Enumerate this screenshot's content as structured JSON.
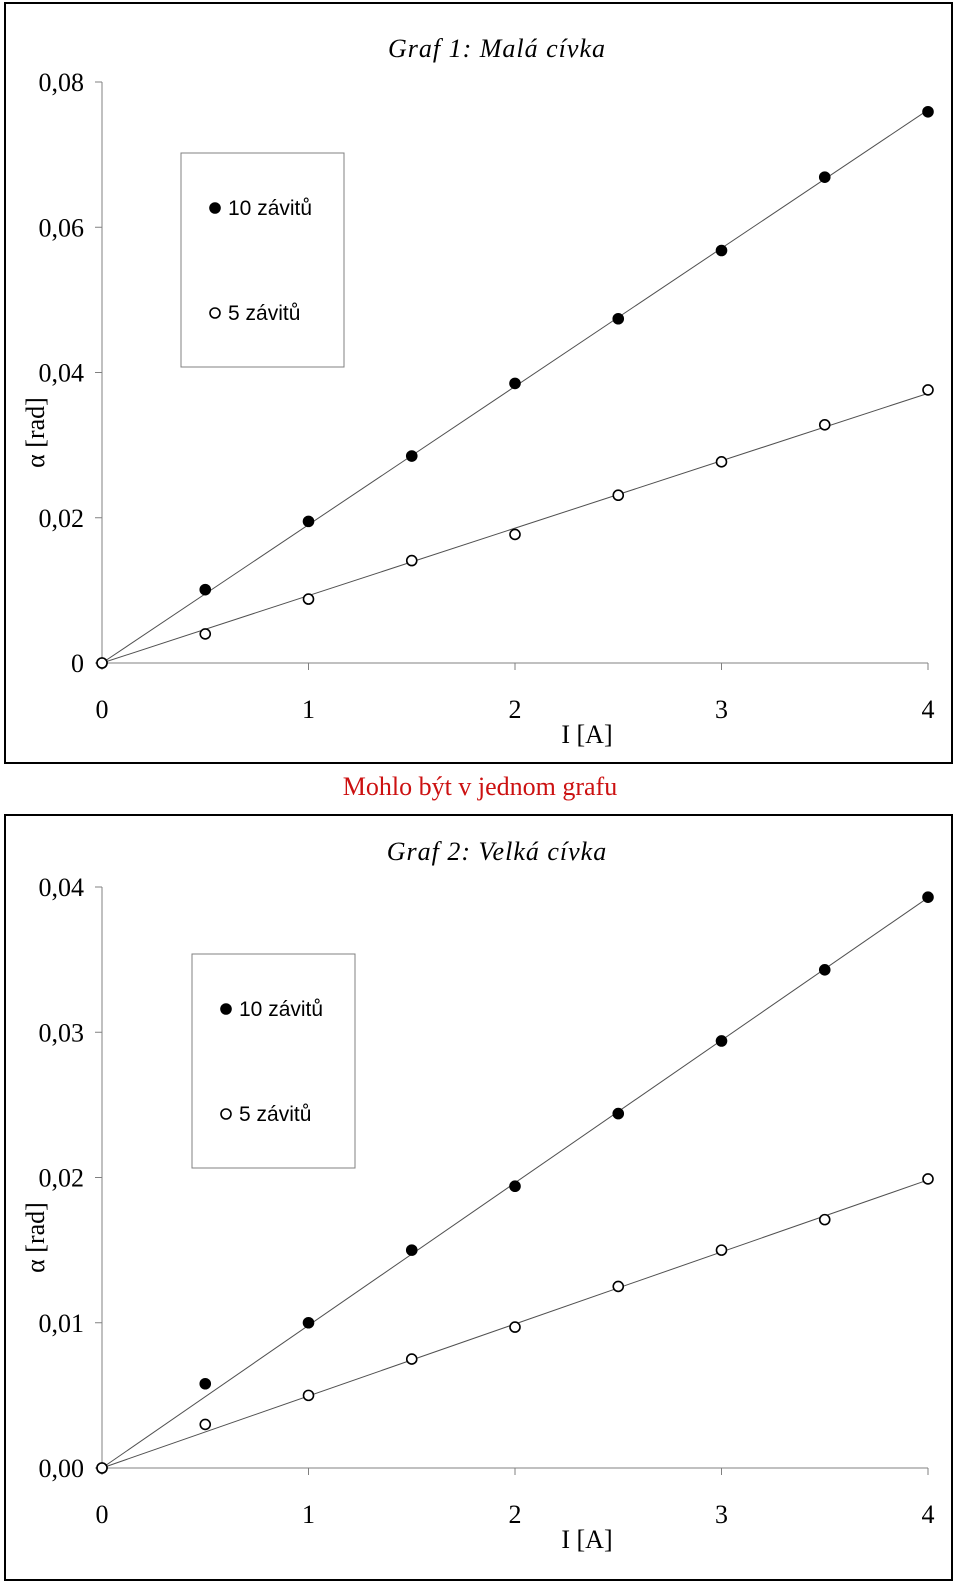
{
  "note": "Mohlo být v jednom grafu",
  "chart_data": [
    {
      "type": "scatter",
      "title": "Graf 1: Malá cívka",
      "xlabel": "I [A]",
      "ylabel": "α [rad]",
      "xlim": [
        0,
        4
      ],
      "ylim": [
        0,
        0.08
      ],
      "xticks": [
        "0",
        "1",
        "2",
        "3",
        "4"
      ],
      "yticks": [
        "0",
        "0,02",
        "0,04",
        "0,06",
        "0,08"
      ],
      "grid": false,
      "legend_position": "top-left",
      "x": [
        0,
        0.5,
        1,
        1.5,
        2,
        2.5,
        3,
        3.5,
        4
      ],
      "series": [
        {
          "name": "10 závitů",
          "marker": "filled-circle",
          "trendline": true,
          "values": [
            0,
            0.0101,
            0.0195,
            0.0285,
            0.0385,
            0.0474,
            0.0568,
            0.0669,
            0.0759
          ]
        },
        {
          "name": "5 závitů",
          "marker": "open-circle",
          "trendline": true,
          "values": [
            0,
            0.004,
            0.0088,
            0.0141,
            0.0177,
            0.0231,
            0.0277,
            0.0328,
            0.0376
          ]
        }
      ]
    },
    {
      "type": "scatter",
      "title": "Graf 2: Velká cívka",
      "xlabel": "I [A]",
      "ylabel": "α [rad]",
      "xlim": [
        0,
        4
      ],
      "ylim": [
        0,
        0.04
      ],
      "xticks": [
        "0",
        "1",
        "2",
        "3",
        "4"
      ],
      "yticks": [
        "0,00",
        "0,01",
        "0,02",
        "0,03",
        "0,04"
      ],
      "grid": false,
      "legend_position": "top-left",
      "x": [
        0,
        0.5,
        1,
        1.5,
        2,
        2.5,
        3,
        3.5,
        4
      ],
      "series": [
        {
          "name": "10 závitů",
          "marker": "filled-circle",
          "trendline": true,
          "values": [
            0,
            0.0058,
            0.01,
            0.015,
            0.0194,
            0.0244,
            0.0294,
            0.0343,
            0.0393
          ]
        },
        {
          "name": "5 závitů",
          "marker": "open-circle",
          "trendline": true,
          "values": [
            0,
            0.003,
            0.005,
            0.0075,
            0.0097,
            0.0125,
            0.015,
            0.0171,
            0.0199
          ]
        }
      ]
    }
  ]
}
